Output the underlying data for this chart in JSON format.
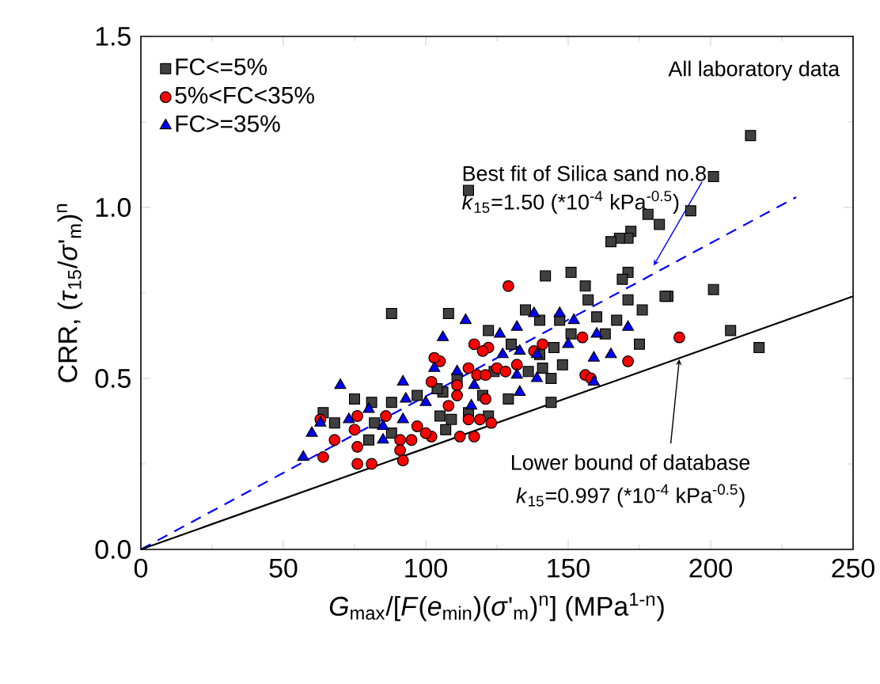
{
  "chart_data": {
    "type": "scatter",
    "xlabel": "*G*$_{max}$/[*F*(*e*$_{min}$)(*σ*'$_{m}$)$^{n}$] (MPa$^{1-n}$)",
    "ylabel": "CRR, (*τ*$_{15}$/*σ*'$_{m}$)$^{n}$",
    "xlim": [
      0,
      250
    ],
    "ylim": [
      0,
      1.5
    ],
    "xticks": [
      0,
      50,
      100,
      150,
      200,
      250
    ],
    "yticks": [
      {
        "value": 0,
        "label": "0.0"
      },
      {
        "value": 0.5,
        "label": "0.5"
      },
      {
        "value": 1,
        "label": "1.0"
      },
      {
        "value": 1.5,
        "label": "1.5"
      }
    ],
    "legend": "top left",
    "grid": false,
    "series": [
      {
        "name": "FC<=5%",
        "color": "#404040",
        "marker": "square",
        "x": [
          214,
          201,
          193,
          178,
          182,
          172,
          171,
          168,
          165,
          115,
          201,
          185,
          176,
          207,
          217,
          171,
          171,
          142,
          151,
          156,
          169,
          184,
          135,
          140,
          147,
          157,
          160,
          167,
          151,
          145,
          140,
          130,
          144,
          129,
          144,
          122,
          163,
          175,
          106,
          109,
          115,
          111,
          120,
          122,
          124,
          136,
          141,
          148,
          105,
          88,
          108,
          75,
          68,
          81,
          88,
          82,
          80,
          97,
          104,
          107,
          88,
          64
        ],
        "values": [
          1.21,
          1.09,
          0.99,
          0.98,
          0.95,
          0.93,
          0.91,
          0.91,
          0.9,
          1.05,
          0.76,
          0.74,
          0.7,
          0.64,
          0.59,
          0.81,
          0.73,
          0.8,
          0.81,
          0.77,
          0.79,
          0.74,
          0.7,
          0.67,
          0.67,
          0.73,
          0.68,
          0.67,
          0.63,
          0.59,
          0.57,
          0.6,
          0.5,
          0.44,
          0.43,
          0.64,
          0.63,
          0.6,
          0.46,
          0.38,
          0.4,
          0.5,
          0.45,
          0.39,
          0.52,
          0.52,
          0.53,
          0.54,
          0.39,
          0.69,
          0.69,
          0.44,
          0.37,
          0.43,
          0.43,
          0.37,
          0.32,
          0.45,
          0.47,
          0.35,
          0.34,
          0.4
        ]
      },
      {
        "name": "5%<FC<35%",
        "color": "#ff0000",
        "marker": "circle",
        "x": [
          129,
          189,
          171,
          155,
          156,
          158,
          141,
          138,
          122,
          117,
          120,
          125,
          128,
          132,
          115,
          118,
          121,
          111,
          111,
          115,
          119,
          123,
          112,
          117,
          121,
          105,
          63,
          76,
          75,
          68,
          64,
          76,
          76,
          81,
          86,
          91,
          95,
          102,
          92,
          91,
          97,
          100,
          108,
          103,
          102
        ],
        "values": [
          0.77,
          0.62,
          0.55,
          0.62,
          0.51,
          0.5,
          0.6,
          0.58,
          0.59,
          0.6,
          0.58,
          0.53,
          0.52,
          0.54,
          0.53,
          0.51,
          0.51,
          0.48,
          0.45,
          0.38,
          0.38,
          0.37,
          0.33,
          0.33,
          0.44,
          0.55,
          0.38,
          0.39,
          0.35,
          0.32,
          0.27,
          0.3,
          0.25,
          0.25,
          0.39,
          0.32,
          0.32,
          0.33,
          0.26,
          0.29,
          0.36,
          0.34,
          0.42,
          0.56,
          0.49
        ]
      },
      {
        "name": "FC>=35%",
        "color": "#0000ff",
        "marker": "triangle",
        "x": [
          171,
          114,
          126,
          132,
          138,
          147,
          152,
          160,
          150,
          165,
          159,
          159,
          139,
          133,
          132,
          127,
          133,
          139,
          111,
          117,
          116,
          106,
          103,
          70,
          92,
          93,
          100,
          80,
          73,
          63,
          60,
          85,
          92,
          57,
          85
        ],
        "values": [
          0.65,
          0.67,
          0.63,
          0.65,
          0.69,
          0.69,
          0.67,
          0.63,
          0.6,
          0.57,
          0.56,
          0.49,
          0.5,
          0.46,
          0.51,
          0.57,
          0.58,
          0.57,
          0.52,
          0.48,
          0.42,
          0.62,
          0.53,
          0.48,
          0.49,
          0.44,
          0.43,
          0.41,
          0.38,
          0.37,
          0.34,
          0.36,
          0.38,
          0.27,
          0.32
        ]
      },
      {
        "type": "line",
        "color": "#0000ff",
        "line_style": "dashed",
        "marker": "none",
        "x": [
          0,
          230
        ],
        "values": [
          0,
          1.03
        ]
      },
      {
        "type": "line",
        "color": "#000000",
        "line_style": "solid",
        "marker": "none",
        "x": [
          0,
          250
        ],
        "values": [
          0,
          0.74
        ]
      }
    ],
    "annotations": [
      "All laboratory data",
      {
        "text": "Best fit of Silica sand no.8",
        "x": 180,
        "y": 0.83
      },
      "*k*$_{15}$=1.50 (*10$^{-4}$ kPa$^{-0.5}$)",
      {
        "text": "Lower bound of database",
        "x": 189,
        "y": 0.556
      },
      "*k*$_{15}$=0.997 (*10$^{-4}$ kPa$^{-0.5}$)"
    ]
  }
}
